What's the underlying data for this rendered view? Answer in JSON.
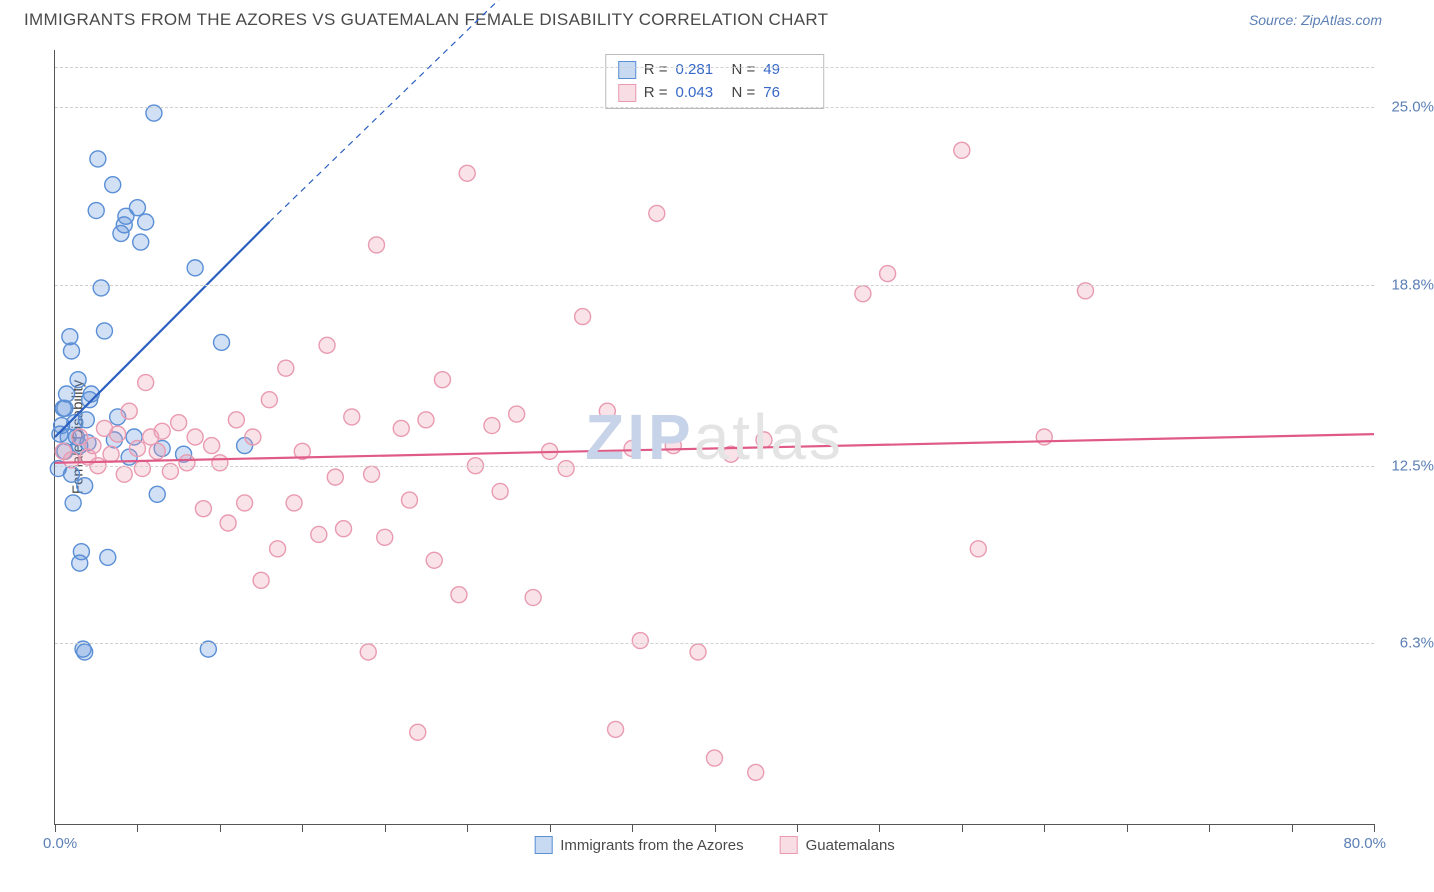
{
  "title": "IMMIGRANTS FROM THE AZORES VS GUATEMALAN FEMALE DISABILITY CORRELATION CHART",
  "source": "Source: ZipAtlas.com",
  "watermark": {
    "part1": "ZIP",
    "part2": "atlas"
  },
  "ylabel": "Female Disability",
  "chart": {
    "type": "scatter",
    "background_color": "#ffffff",
    "grid_color": "#d0d0d0",
    "grid_style": "dashed",
    "axis_color": "#555555",
    "label_text_color": "#4a4a4a",
    "value_text_color": "#5b7fb5",
    "xlim": [
      0,
      80
    ],
    "ylim": [
      0,
      27
    ],
    "x_min_label": "0.0%",
    "x_max_label": "80.0%",
    "x_ticks": [
      0,
      5,
      10,
      15,
      20,
      25,
      30,
      35,
      40,
      45,
      50,
      55,
      60,
      65,
      70,
      75,
      80
    ],
    "y_gridlines": [
      {
        "value": 6.3,
        "label": "6.3%"
      },
      {
        "value": 12.5,
        "label": "12.5%"
      },
      {
        "value": 18.8,
        "label": "18.8%"
      },
      {
        "value": 25.0,
        "label": "25.0%"
      },
      {
        "value": 26.4,
        "label": ""
      }
    ],
    "marker_radius": 8,
    "marker_stroke_width": 1.4,
    "marker_fill_opacity": 0.28,
    "trend_line_width": 2.2,
    "series": [
      {
        "id": "azores",
        "name": "Immigrants from the Azores",
        "color": "#5a8fd6",
        "line_color": "#2b5fc1",
        "r": 0.281,
        "n": 49,
        "r_label": "0.281",
        "n_label": "49",
        "trend": {
          "x1": 0,
          "y1": 13.5,
          "x2": 13,
          "y2": 21.0,
          "dash_to_x": 27,
          "dash_to_y": 28.8
        },
        "points": [
          [
            0.2,
            12.4
          ],
          [
            0.3,
            13.6
          ],
          [
            0.4,
            13.9
          ],
          [
            0.5,
            14.5
          ],
          [
            0.6,
            13.0
          ],
          [
            0.6,
            14.5
          ],
          [
            0.7,
            15.0
          ],
          [
            0.8,
            13.5
          ],
          [
            0.9,
            17.0
          ],
          [
            1.0,
            16.5
          ],
          [
            1.0,
            12.2
          ],
          [
            1.1,
            11.2
          ],
          [
            1.2,
            14.0
          ],
          [
            1.3,
            13.5
          ],
          [
            1.4,
            15.5
          ],
          [
            1.5,
            13.2
          ],
          [
            1.5,
            9.1
          ],
          [
            1.6,
            9.5
          ],
          [
            1.7,
            6.1
          ],
          [
            1.8,
            11.8
          ],
          [
            1.9,
            14.1
          ],
          [
            2.0,
            13.3
          ],
          [
            2.1,
            14.8
          ],
          [
            2.2,
            15.0
          ],
          [
            2.5,
            21.4
          ],
          [
            2.6,
            23.2
          ],
          [
            2.8,
            18.7
          ],
          [
            3.0,
            17.2
          ],
          [
            3.2,
            9.3
          ],
          [
            3.5,
            22.3
          ],
          [
            3.6,
            13.4
          ],
          [
            3.8,
            14.2
          ],
          [
            4.0,
            20.6
          ],
          [
            4.2,
            20.9
          ],
          [
            4.5,
            12.8
          ],
          [
            4.8,
            13.5
          ],
          [
            5.0,
            21.5
          ],
          [
            5.2,
            20.3
          ],
          [
            5.5,
            21.0
          ],
          [
            6.0,
            24.8
          ],
          [
            6.2,
            11.5
          ],
          [
            6.5,
            13.1
          ],
          [
            7.8,
            12.9
          ],
          [
            8.5,
            19.4
          ],
          [
            9.3,
            6.1
          ],
          [
            10.1,
            16.8
          ],
          [
            11.5,
            13.2
          ],
          [
            4.3,
            21.2
          ],
          [
            1.8,
            6.0
          ]
        ]
      },
      {
        "id": "guatemalans",
        "name": "Guatemalans",
        "color": "#e99ab0",
        "line_color": "#e05a87",
        "r": 0.043,
        "n": 76,
        "r_label": "0.043",
        "n_label": "76",
        "trend": {
          "x1": 0,
          "y1": 12.6,
          "x2": 80,
          "y2": 13.6
        },
        "points": [
          [
            0.5,
            13.0
          ],
          [
            1.0,
            12.7
          ],
          [
            1.5,
            13.5
          ],
          [
            2.0,
            12.8
          ],
          [
            2.3,
            13.2
          ],
          [
            2.6,
            12.5
          ],
          [
            3.0,
            13.8
          ],
          [
            3.4,
            12.9
          ],
          [
            3.8,
            13.6
          ],
          [
            4.2,
            12.2
          ],
          [
            4.5,
            14.4
          ],
          [
            5.0,
            13.1
          ],
          [
            5.3,
            12.4
          ],
          [
            5.5,
            15.4
          ],
          [
            5.8,
            13.5
          ],
          [
            6.2,
            13.0
          ],
          [
            6.5,
            13.7
          ],
          [
            7.0,
            12.3
          ],
          [
            7.5,
            14.0
          ],
          [
            8.0,
            12.6
          ],
          [
            8.5,
            13.5
          ],
          [
            9.0,
            11.0
          ],
          [
            9.5,
            13.2
          ],
          [
            10.0,
            12.6
          ],
          [
            10.5,
            10.5
          ],
          [
            11.0,
            14.1
          ],
          [
            11.5,
            11.2
          ],
          [
            12.0,
            13.5
          ],
          [
            12.5,
            8.5
          ],
          [
            13.0,
            14.8
          ],
          [
            13.5,
            9.6
          ],
          [
            14.0,
            15.9
          ],
          [
            14.5,
            11.2
          ],
          [
            15.0,
            13.0
          ],
          [
            16.0,
            10.1
          ],
          [
            16.5,
            16.7
          ],
          [
            17.0,
            12.1
          ],
          [
            17.5,
            10.3
          ],
          [
            18.0,
            14.2
          ],
          [
            19.0,
            6.0
          ],
          [
            19.2,
            12.2
          ],
          [
            19.5,
            20.2
          ],
          [
            20.0,
            10.0
          ],
          [
            21.0,
            13.8
          ],
          [
            21.5,
            11.3
          ],
          [
            22.0,
            3.2
          ],
          [
            22.5,
            14.1
          ],
          [
            23.0,
            9.2
          ],
          [
            23.5,
            15.5
          ],
          [
            24.5,
            8.0
          ],
          [
            25.0,
            22.7
          ],
          [
            25.5,
            12.5
          ],
          [
            26.5,
            13.9
          ],
          [
            27.0,
            11.6
          ],
          [
            28.0,
            14.3
          ],
          [
            29.0,
            7.9
          ],
          [
            30.0,
            13.0
          ],
          [
            31.0,
            12.4
          ],
          [
            32.0,
            17.7
          ],
          [
            33.5,
            14.4
          ],
          [
            34.0,
            3.3
          ],
          [
            35.0,
            13.1
          ],
          [
            35.5,
            6.4
          ],
          [
            36.5,
            21.3
          ],
          [
            37.5,
            13.2
          ],
          [
            39.0,
            6.0
          ],
          [
            40.0,
            2.3
          ],
          [
            41.0,
            12.9
          ],
          [
            42.5,
            1.8
          ],
          [
            43.0,
            13.4
          ],
          [
            49.0,
            18.5
          ],
          [
            50.5,
            19.2
          ],
          [
            55.0,
            23.5
          ],
          [
            56.0,
            9.6
          ],
          [
            60.0,
            13.5
          ],
          [
            62.5,
            18.6
          ]
        ]
      }
    ],
    "legend": {
      "r_prefix": "R  =",
      "n_prefix": "N  ="
    }
  }
}
